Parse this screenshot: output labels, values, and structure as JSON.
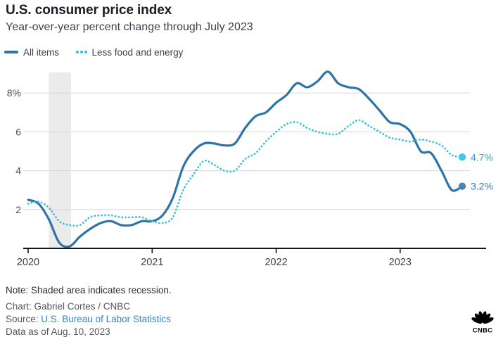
{
  "header": {
    "title": "U.S. consumer price index",
    "subtitle": "Year-over-year percent change through July 2023"
  },
  "legend": [
    {
      "label": "All items",
      "color": "#2d74a7",
      "style": "solid"
    },
    {
      "label": "Less food and energy",
      "color": "#3cc0e0",
      "style": "dotted"
    }
  ],
  "chart_data": {
    "type": "line",
    "x_start": "2020-01",
    "x_end": "2023-07",
    "x_frequency": "monthly",
    "x_tick_labels": [
      "2020",
      "2021",
      "2022",
      "2023"
    ],
    "x_tick_indices": [
      0,
      12,
      24,
      36
    ],
    "y_tick_labels": [
      "8%",
      "6",
      "4",
      "2"
    ],
    "y_tick_values": [
      8,
      6,
      4,
      2
    ],
    "ylim": [
      0,
      9.2
    ],
    "grid": "horizontal",
    "recession_band": {
      "from_index": 2,
      "to_index": 4.15,
      "color": "#ebebeb"
    },
    "series": [
      {
        "name": "All items",
        "style": "solid",
        "color": "#2d74a7",
        "marker_color": "#4a84b3",
        "end_label": "3.2%",
        "end_label_color": "#3e78a8",
        "values": [
          2.5,
          2.3,
          1.5,
          0.3,
          0.1,
          0.6,
          1.0,
          1.3,
          1.4,
          1.2,
          1.2,
          1.4,
          1.4,
          1.7,
          2.6,
          4.2,
          5.0,
          5.4,
          5.4,
          5.3,
          5.4,
          6.2,
          6.8,
          7.0,
          7.5,
          7.9,
          8.5,
          8.3,
          8.6,
          9.1,
          8.5,
          8.3,
          8.2,
          7.7,
          7.1,
          6.5,
          6.4,
          6.0,
          5.0,
          4.9,
          4.0,
          3.0,
          3.2
        ]
      },
      {
        "name": "Less food and energy",
        "style": "dotted",
        "color": "#3cc0e0",
        "marker_color": "#3fc8ea",
        "end_label": "4.7%",
        "end_label_color": "#3f9dc6",
        "values": [
          2.3,
          2.4,
          2.1,
          1.4,
          1.2,
          1.2,
          1.6,
          1.7,
          1.7,
          1.6,
          1.6,
          1.6,
          1.4,
          1.3,
          1.6,
          3.0,
          3.8,
          4.5,
          4.3,
          4.0,
          4.0,
          4.6,
          4.9,
          5.5,
          6.0,
          6.4,
          6.5,
          6.2,
          6.0,
          5.9,
          5.9,
          6.3,
          6.6,
          6.3,
          6.0,
          5.7,
          5.6,
          5.5,
          5.6,
          5.5,
          5.3,
          4.8,
          4.7
        ]
      }
    ]
  },
  "footer": {
    "note": "Note: Shaded area indicates recession.",
    "credit": "Chart: Gabriel Cortes / CNBC",
    "source_label": "Source: ",
    "source_link": "U.S. Bureau of Labor Statistics",
    "as_of": "Data as of Aug. 10, 2023"
  },
  "logo": {
    "text": "CNBC"
  }
}
